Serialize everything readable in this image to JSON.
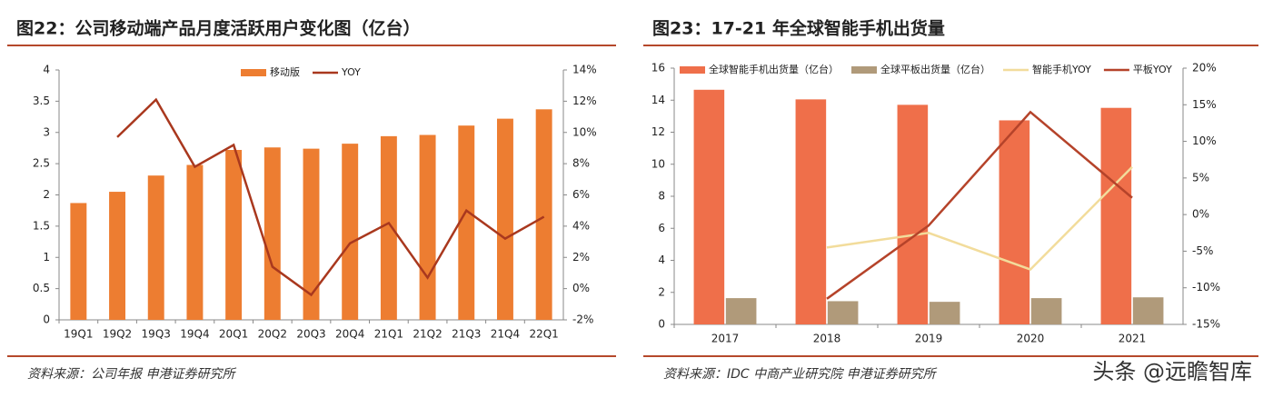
{
  "chart_data": [
    {
      "type": "bar_line",
      "title": "图22：公司移动端产品月度活跃用户变化图（亿台）",
      "source": "资料来源：公司年报 申港证券研究所",
      "categories": [
        "19Q1",
        "19Q2",
        "19Q3",
        "19Q4",
        "20Q1",
        "20Q2",
        "20Q3",
        "20Q4",
        "21Q1",
        "21Q2",
        "21Q3",
        "21Q4",
        "22Q1"
      ],
      "series": [
        {
          "name": "移动版",
          "type": "bar",
          "color": "#ed7d31",
          "values": [
            1.87,
            2.05,
            2.31,
            2.48,
            2.72,
            2.76,
            2.74,
            2.82,
            2.94,
            2.96,
            3.11,
            3.22,
            3.37
          ]
        },
        {
          "name": "YOY",
          "type": "line",
          "axis": "y2",
          "color": "#a9381e",
          "values": [
            null,
            9.7,
            12.1,
            7.8,
            9.2,
            1.4,
            -0.4,
            2.9,
            4.2,
            0.7,
            5.0,
            3.2,
            4.6
          ]
        }
      ],
      "ylim": [
        0,
        4
      ],
      "yticks": [
        0,
        0.5,
        1,
        1.5,
        2,
        2.5,
        3,
        3.5,
        4
      ],
      "y2lim": [
        -2,
        14
      ],
      "y2ticks": [
        {
          "value": -2,
          "label": "-2%"
        },
        {
          "value": 0,
          "label": "0%"
        },
        {
          "value": 2,
          "label": "2%"
        },
        {
          "value": 4,
          "label": "4%"
        },
        {
          "value": 6,
          "label": "6%"
        },
        {
          "value": 8,
          "label": "8%"
        },
        {
          "value": 10,
          "label": "10%"
        },
        {
          "value": 12,
          "label": "12%"
        },
        {
          "value": 14,
          "label": "14%"
        }
      ],
      "grid": false
    },
    {
      "type": "bar_line",
      "title": "图23：17-21 年全球智能手机出货量",
      "source": "资料来源：IDC 中商产业研究院 申港证券研究所",
      "categories": [
        "2017",
        "2018",
        "2019",
        "2020",
        "2021"
      ],
      "series": [
        {
          "name": "全球智能手机出货量（亿台）",
          "type": "bar",
          "color": "#ef6f4a",
          "values": [
            14.65,
            14.05,
            13.71,
            12.74,
            13.52
          ]
        },
        {
          "name": "全球平板出货量（亿台）",
          "type": "bar",
          "color": "#b09a7a",
          "values": [
            1.64,
            1.45,
            1.41,
            1.64,
            1.69
          ]
        },
        {
          "name": "智能手机YOY",
          "type": "line",
          "axis": "y2",
          "color": "#f2dc9b",
          "values": [
            null,
            -4.5,
            -2.5,
            -7.5,
            6.5
          ]
        },
        {
          "name": "平板YOY",
          "type": "line",
          "axis": "y2",
          "color": "#b5432a",
          "values": [
            null,
            -11.5,
            -1.5,
            14,
            2.3
          ]
        }
      ],
      "ylim": [
        0,
        16
      ],
      "yticks": [
        0,
        2,
        4,
        6,
        8,
        10,
        12,
        14,
        16
      ],
      "y2lim": [
        -15,
        20
      ],
      "y2ticks": [
        {
          "value": -15,
          "label": "-15%"
        },
        {
          "value": -10,
          "label": "-10%"
        },
        {
          "value": -5,
          "label": "-5%"
        },
        {
          "value": 0,
          "label": "0%"
        },
        {
          "value": 5,
          "label": "5%"
        },
        {
          "value": 10,
          "label": "10%"
        },
        {
          "value": 15,
          "label": "15%"
        },
        {
          "value": 20,
          "label": "20%"
        }
      ],
      "grid": false
    }
  ],
  "watermark": "头条 @远瞻智库"
}
